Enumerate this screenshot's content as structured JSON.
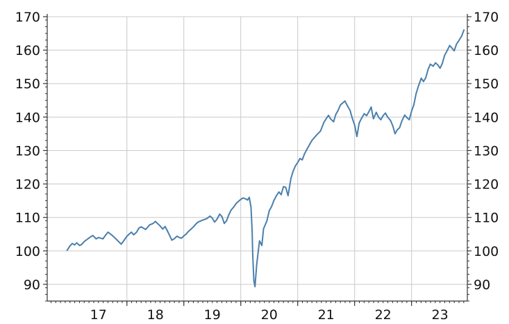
{
  "chart_data": {
    "type": "line",
    "title": "",
    "xlabel": "",
    "ylabel": "",
    "x_tick_labels": [
      "17",
      "18",
      "19",
      "20",
      "21",
      "22",
      "23"
    ],
    "x_tick_positions": [
      2017.5,
      2018.5,
      2019.5,
      2020.5,
      2021.5,
      2022.5,
      2023.5
    ],
    "x_year_boundaries": [
      2018,
      2019,
      2020,
      2021,
      2022,
      2023
    ],
    "xlim": [
      2016.6,
      2023.98
    ],
    "y_ticks": [
      90,
      100,
      110,
      120,
      130,
      140,
      150,
      160,
      170
    ],
    "y_tick_labels_left": [
      "90",
      "100",
      "110",
      "120",
      "130",
      "140",
      "150",
      "160",
      "170"
    ],
    "y_tick_labels_right": [
      "90",
      "100",
      "110",
      "120",
      "130",
      "140",
      "150",
      "160",
      "170"
    ],
    "ylim": [
      85,
      170
    ],
    "grid": true,
    "legend": "none",
    "line_color": "#4a7fab",
    "series": [
      {
        "x": [
          2016.95,
          2017.0,
          2017.04,
          2017.08,
          2017.12,
          2017.17,
          2017.21,
          2017.25,
          2017.33,
          2017.4,
          2017.46,
          2017.5,
          2017.58,
          2017.63,
          2017.67,
          2017.75,
          2017.83,
          2017.9,
          2017.96,
          2018.0,
          2018.04,
          2018.08,
          2018.12,
          2018.17,
          2018.21,
          2018.25,
          2018.33,
          2018.4,
          2018.46,
          2018.5,
          2018.58,
          2018.63,
          2018.67,
          2018.71,
          2018.75,
          2018.79,
          2018.83,
          2018.88,
          2018.92,
          2018.96,
          2019.0,
          2019.04,
          2019.08,
          2019.12,
          2019.17,
          2019.21,
          2019.25,
          2019.33,
          2019.4,
          2019.46,
          2019.5,
          2019.54,
          2019.58,
          2019.63,
          2019.67,
          2019.71,
          2019.75,
          2019.79,
          2019.83,
          2019.88,
          2019.92,
          2019.96,
          2020.0,
          2020.04,
          2020.08,
          2020.12,
          2020.15,
          2020.18,
          2020.2,
          2020.21,
          2020.23,
          2020.25,
          2020.28,
          2020.31,
          2020.33,
          2020.37,
          2020.4,
          2020.46,
          2020.5,
          2020.54,
          2020.58,
          2020.63,
          2020.67,
          2020.71,
          2020.75,
          2020.79,
          2020.83,
          2020.88,
          2020.92,
          2020.96,
          2021.0,
          2021.04,
          2021.08,
          2021.12,
          2021.17,
          2021.21,
          2021.25,
          2021.33,
          2021.4,
          2021.46,
          2021.5,
          2021.54,
          2021.58,
          2021.63,
          2021.67,
          2021.71,
          2021.75,
          2021.79,
          2021.83,
          2021.88,
          2021.92,
          2021.96,
          2022.0,
          2022.04,
          2022.08,
          2022.12,
          2022.17,
          2022.21,
          2022.25,
          2022.29,
          2022.33,
          2022.38,
          2022.42,
          2022.46,
          2022.5,
          2022.54,
          2022.58,
          2022.63,
          2022.67,
          2022.71,
          2022.75,
          2022.79,
          2022.83,
          2022.88,
          2022.92,
          2022.96,
          2023.0,
          2023.04,
          2023.08,
          2023.12,
          2023.17,
          2023.21,
          2023.25,
          2023.29,
          2023.33,
          2023.38,
          2023.42,
          2023.46,
          2023.5,
          2023.54,
          2023.58,
          2023.63,
          2023.67,
          2023.71,
          2023.75,
          2023.79,
          2023.83,
          2023.88,
          2023.92
        ],
        "y": [
          100.2,
          101.5,
          102.2,
          101.8,
          102.4,
          101.6,
          102.0,
          102.8,
          103.8,
          104.6,
          103.6,
          104.0,
          103.6,
          104.8,
          105.6,
          104.5,
          103.2,
          102.0,
          103.4,
          104.4,
          105.0,
          105.6,
          104.8,
          105.6,
          106.8,
          107.2,
          106.4,
          107.8,
          108.2,
          108.8,
          107.5,
          106.5,
          107.3,
          106.0,
          104.6,
          103.2,
          103.6,
          104.4,
          104.0,
          103.8,
          104.5,
          105.0,
          105.8,
          106.4,
          107.2,
          108.0,
          108.6,
          109.2,
          109.6,
          110.4,
          109.8,
          108.6,
          109.4,
          111.0,
          110.2,
          108.2,
          109.0,
          110.8,
          112.2,
          113.2,
          114.2,
          114.8,
          115.4,
          115.8,
          115.6,
          115.2,
          116.0,
          113.0,
          106.0,
          99.0,
          91.0,
          89.3,
          96.0,
          100.2,
          103.0,
          101.6,
          106.6,
          109.0,
          112.0,
          113.2,
          115.0,
          116.6,
          117.6,
          116.8,
          119.2,
          119.0,
          116.5,
          121.6,
          123.8,
          125.4,
          126.4,
          127.6,
          127.2,
          129.0,
          130.6,
          131.8,
          133.0,
          134.6,
          135.8,
          138.4,
          139.5,
          140.5,
          139.4,
          138.6,
          140.8,
          142.0,
          143.6,
          144.2,
          144.8,
          143.2,
          142.0,
          139.6,
          137.6,
          134.2,
          138.2,
          139.6,
          141.0,
          140.4,
          141.6,
          143.0,
          139.5,
          141.4,
          140.0,
          139.2,
          140.4,
          141.2,
          140.0,
          139.0,
          137.4,
          135.0,
          136.2,
          136.8,
          138.8,
          140.6,
          139.8,
          139.2,
          141.8,
          143.6,
          147.0,
          149.2,
          151.6,
          150.6,
          151.8,
          154.2,
          155.8,
          155.2,
          156.2,
          155.6,
          154.6,
          156.0,
          158.4,
          160.0,
          161.4,
          160.6,
          159.8,
          161.8,
          162.8,
          164.2,
          166.0
        ]
      }
    ]
  }
}
